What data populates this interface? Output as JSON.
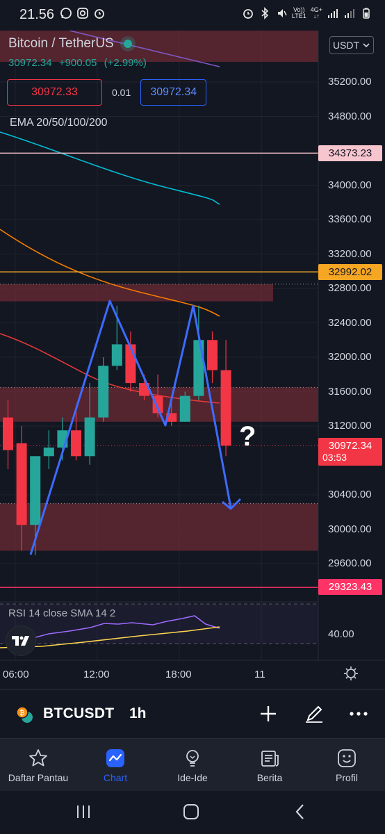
{
  "status_bar": {
    "time": "21.56",
    "network": "4G+",
    "volte": "Vo))",
    "lte": "LTE1"
  },
  "header": {
    "symbol_title": "Bitcoin / TetherUS",
    "last_price": "30972.34",
    "change": "+900.05",
    "change_pct": "(+2.99%)",
    "bid": "30972.33",
    "spread": "0.01",
    "ask": "30972.34",
    "currency_button": "USDT",
    "indicator_label": "EMA 20/50/100/200",
    "rsi_label": "RSI 14 close SMA 14 2"
  },
  "colors": {
    "background": "#131722",
    "up": "#26a69a",
    "down": "#f23645",
    "accent_blue": "#2962ff",
    "zone": "#6b2a34",
    "line_pink": "#f7c5ce",
    "line_orange": "#f5a623",
    "line_red": "#ff3366"
  },
  "price_axis": {
    "ticks": [
      "35200.00",
      "34800.00",
      "34000.00",
      "33600.00",
      "33200.00",
      "32800.00",
      "32400.00",
      "32000.00",
      "31600.00",
      "31200.00",
      "30400.00",
      "30000.00",
      "29600.00"
    ],
    "rsi_tick": "40.00"
  },
  "price_tags": {
    "resistance_high": "34373.23",
    "resistance_mid": "32992.02",
    "current": "30972.34",
    "countdown": "03:53",
    "support_low": "29323.43"
  },
  "time_axis": [
    "06:00",
    "12:00",
    "18:00",
    "11"
  ],
  "annotation": {
    "question": "?"
  },
  "chart_data": {
    "type": "candlestick",
    "title": "Bitcoin / TetherUS",
    "timeframe": "1h",
    "candles": [
      {
        "open": 31300,
        "high": 31500,
        "low": 30700,
        "close": 30920
      },
      {
        "open": 31000,
        "high": 31200,
        "low": 29750,
        "close": 30050
      },
      {
        "open": 30050,
        "high": 30850,
        "low": 29700,
        "close": 30850
      },
      {
        "open": 30850,
        "high": 31150,
        "low": 30700,
        "close": 30950
      },
      {
        "open": 30950,
        "high": 31300,
        "low": 30800,
        "close": 31150
      },
      {
        "open": 31150,
        "high": 31400,
        "low": 30800,
        "close": 30850
      },
      {
        "open": 30850,
        "high": 31700,
        "low": 30750,
        "close": 31300
      },
      {
        "open": 31300,
        "high": 32000,
        "low": 31250,
        "close": 31900
      },
      {
        "open": 31900,
        "high": 32600,
        "low": 31850,
        "close": 32150
      },
      {
        "open": 32150,
        "high": 32300,
        "low": 31600,
        "close": 31700
      },
      {
        "open": 31700,
        "high": 31800,
        "low": 31500,
        "close": 31550
      },
      {
        "open": 31550,
        "high": 31800,
        "low": 31300,
        "close": 31350
      },
      {
        "open": 31350,
        "high": 31550,
        "low": 31200,
        "close": 31250
      },
      {
        "open": 31250,
        "high": 31600,
        "low": 31250,
        "close": 31550
      },
      {
        "open": 31550,
        "high": 32600,
        "low": 31500,
        "close": 32200
      },
      {
        "open": 32200,
        "high": 32300,
        "low": 31700,
        "close": 31850
      },
      {
        "open": 31850,
        "high": 32200,
        "low": 30850,
        "close": 30972
      }
    ],
    "horizontal_lines": [
      34373.23,
      32992.02,
      29323.43
    ],
    "zones": [
      {
        "from": 32650,
        "to": 32850
      },
      {
        "from": 31250,
        "to": 31650
      },
      {
        "from": 29750,
        "to": 30300
      }
    ],
    "ylim": [
      29150,
      35600
    ],
    "rsi": {
      "level": 40.0
    }
  },
  "symbol_bar": {
    "symbol": "BTCUSDT",
    "timeframe": "1h"
  },
  "bottom_nav": [
    {
      "label": "Daftar Pantau",
      "icon": "star-icon"
    },
    {
      "label": "Chart",
      "icon": "chart-icon",
      "active": true
    },
    {
      "label": "Ide-Ide",
      "icon": "lightbulb-icon"
    },
    {
      "label": "Berita",
      "icon": "news-icon"
    },
    {
      "label": "Profil",
      "icon": "smiley-icon"
    }
  ]
}
